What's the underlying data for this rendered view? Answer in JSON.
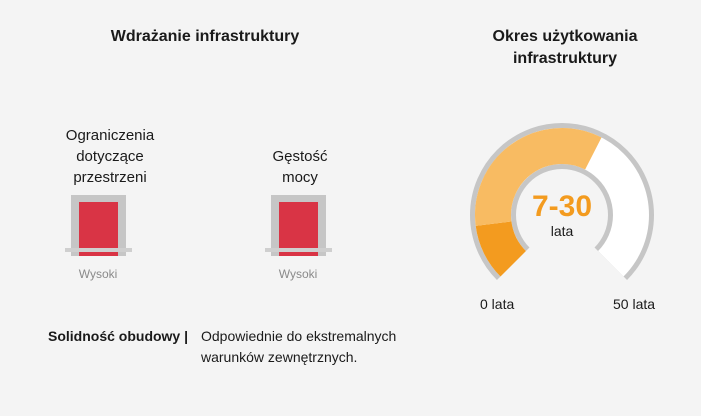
{
  "deployment": {
    "title": "Wdrażanie infrastruktury",
    "items": [
      {
        "label_lines": [
          "Ograniczenia",
          "dotyczące",
          "przestrzeni"
        ],
        "level": "Wysoki"
      },
      {
        "label_lines": [
          "Gęstość",
          "mocy"
        ],
        "level": "Wysoki"
      }
    ],
    "robustness_label": "Solidność obudowy |",
    "robustness_desc_lines": [
      "Odpowiednie do ekstremalnych",
      "warunków zewnętrznych."
    ]
  },
  "lifespan": {
    "title_lines": [
      "Okres użytkowania",
      "infrastruktury"
    ],
    "value": "7-30",
    "unit": "lata",
    "min_label": "0 lata",
    "max_label": "50 lata"
  },
  "gauge_data": {
    "min": 0,
    "max": 50,
    "low": 7,
    "high": 30
  },
  "colors": {
    "accent": "#f39b1f",
    "range": "#f8bb62",
    "level_high": "#d93445",
    "track": "#c6c6c6"
  }
}
